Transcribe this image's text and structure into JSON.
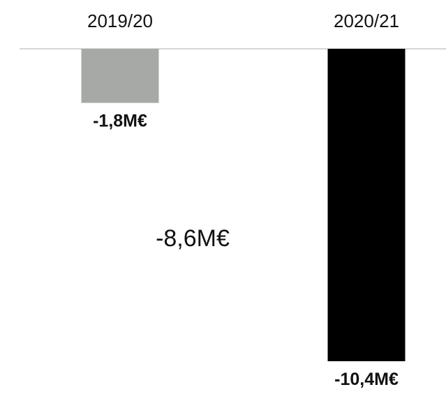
{
  "chart_data": {
    "type": "bar",
    "categories": [
      "2019/20",
      "2020/21"
    ],
    "values": [
      -1.8,
      -10.4
    ],
    "value_labels": [
      "-1,8M€",
      "-10,4M€"
    ],
    "bar_colors": [
      "#a7a9a7",
      "#000000"
    ],
    "baseline_color": "#d6d6d6",
    "ylim": [
      -10.4,
      0
    ],
    "annotations": [
      {
        "text": "-8,6M€"
      }
    ],
    "title": "",
    "xlabel": "",
    "ylabel": "",
    "grid": false,
    "legend": "none"
  }
}
